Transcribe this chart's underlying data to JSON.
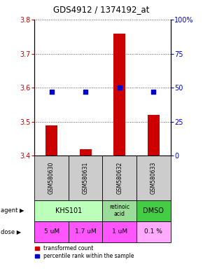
{
  "title": "GDS4912 / 1374192_at",
  "samples": [
    "GSM580630",
    "GSM580631",
    "GSM580632",
    "GSM580633"
  ],
  "bar_values": [
    3.49,
    3.42,
    3.76,
    3.52
  ],
  "dot_values": [
    47,
    47,
    50,
    47
  ],
  "ylim_left": [
    3.4,
    3.8
  ],
  "ylim_right": [
    0,
    100
  ],
  "yticks_left": [
    3.4,
    3.5,
    3.6,
    3.7,
    3.8
  ],
  "yticks_right": [
    0,
    25,
    50,
    75,
    100
  ],
  "bar_color": "#cc0000",
  "dot_color": "#0000cc",
  "agent_data": [
    {
      "cols": [
        0,
        1
      ],
      "label": "KHS101",
      "color": "#bbffbb"
    },
    {
      "cols": [
        2
      ],
      "label": "retinoic\nacid",
      "color": "#99dd99"
    },
    {
      "cols": [
        3
      ],
      "label": "DMSO",
      "color": "#44cc44"
    }
  ],
  "dose_labels": [
    "5 uM",
    "1.7 uM",
    "1 uM",
    "0.1 %"
  ],
  "dose_colors": [
    "#ff55ff",
    "#ff55ff",
    "#ff55ff",
    "#ffaaff"
  ],
  "sample_bg": "#cccccc",
  "legend_bar_label": "transformed count",
  "legend_dot_label": "percentile rank within the sample",
  "left_label_color": "#cc0000",
  "right_label_color": "#0000cc",
  "grid_color": "#555555",
  "bar_width": 0.35
}
